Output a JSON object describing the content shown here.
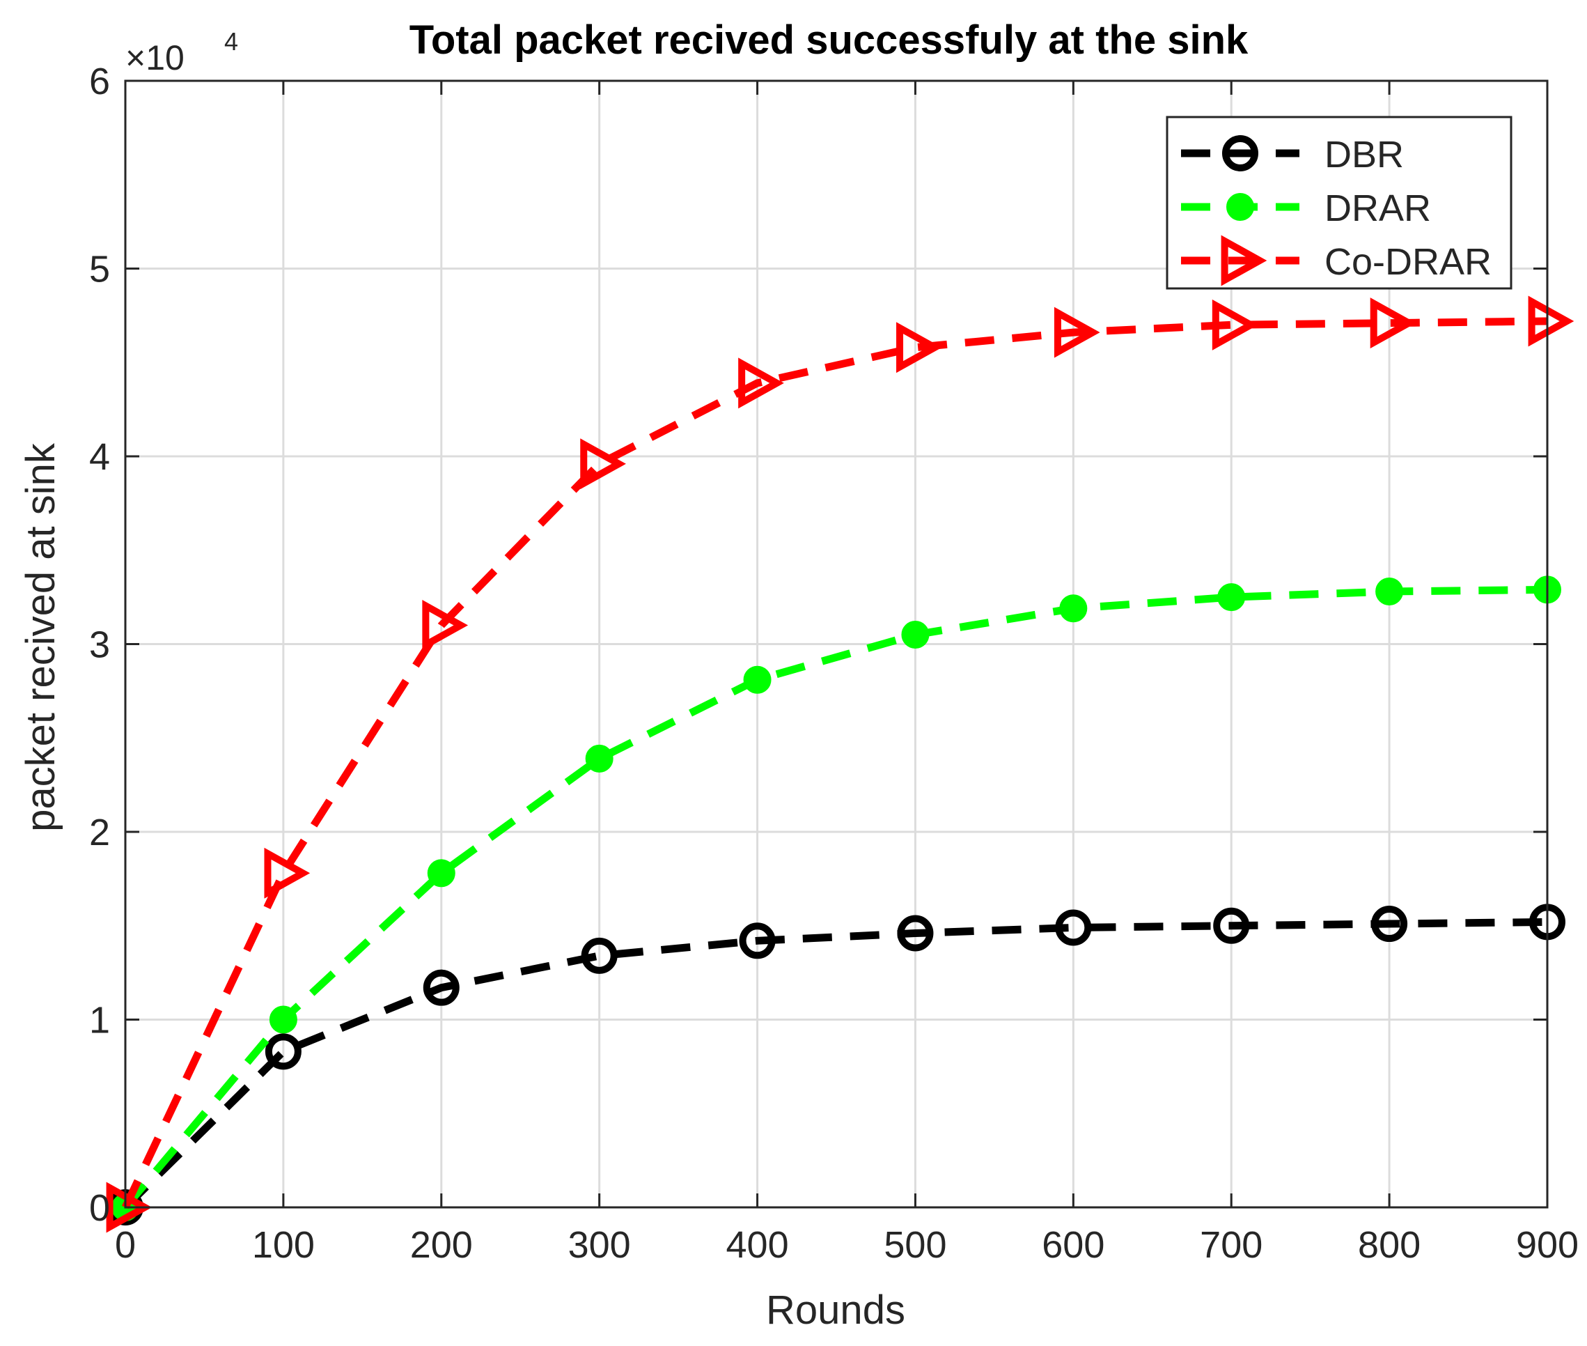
{
  "chart_data": {
    "type": "line",
    "title": "Total packet recived successfuly at the sink",
    "xlabel": "Rounds",
    "ylabel": "packet recived at sink",
    "exponent_base": "×10",
    "exponent_power": "4",
    "x": [
      0,
      100,
      200,
      300,
      400,
      500,
      600,
      700,
      800,
      900
    ],
    "xlim": [
      0,
      900
    ],
    "ylim": [
      0,
      6
    ],
    "xticks": [
      0,
      100,
      200,
      300,
      400,
      500,
      600,
      700,
      800,
      900
    ],
    "yticks": [
      0,
      1,
      2,
      3,
      4,
      5,
      6
    ],
    "grid": true,
    "legend_position": "top-right",
    "series": [
      {
        "name": "DBR",
        "color": "#000000",
        "marker": "circle-open",
        "values": [
          0,
          0.83,
          1.17,
          1.34,
          1.42,
          1.46,
          1.49,
          1.5,
          1.51,
          1.52
        ]
      },
      {
        "name": "DRAR",
        "color": "#00ff00",
        "marker": "circle-filled",
        "values": [
          0,
          1.0,
          1.78,
          2.39,
          2.81,
          3.05,
          3.19,
          3.25,
          3.28,
          3.29
        ]
      },
      {
        "name": "Co-DRAR",
        "color": "#ff0000",
        "marker": "triangle-right",
        "values": [
          0,
          1.78,
          3.1,
          3.96,
          4.39,
          4.58,
          4.66,
          4.7,
          4.71,
          4.72
        ]
      }
    ]
  }
}
